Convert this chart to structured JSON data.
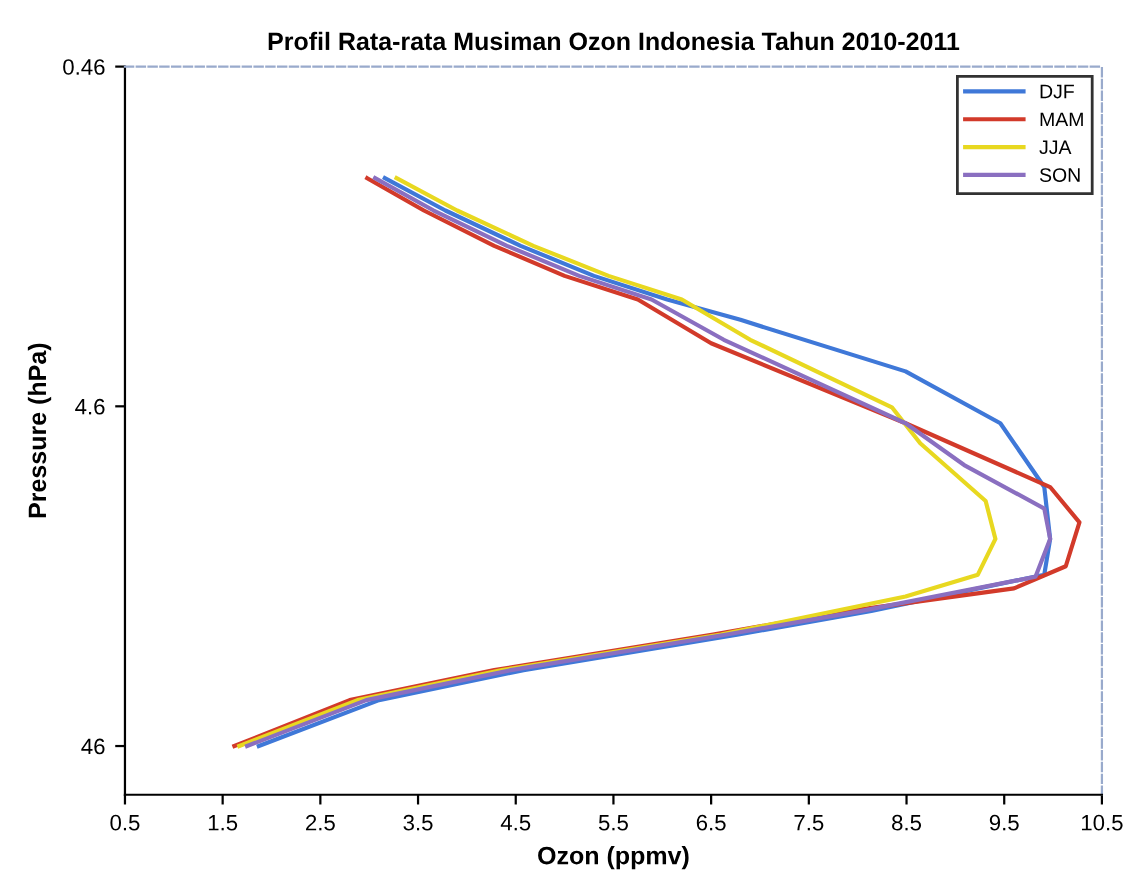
{
  "chart_data": {
    "type": "line",
    "title": "Profil Rata-rata Musiman Ozon Indonesia Tahun 2010-2011",
    "xlabel": "Ozon (ppmv)",
    "ylabel": "Pressure (hPa)",
    "xlim": [
      0.5,
      10.5
    ],
    "xticks": [
      0.5,
      1.5,
      2.5,
      3.5,
      4.5,
      5.5,
      6.5,
      7.5,
      8.5,
      9.5,
      10.5
    ],
    "ylim": [
      64,
      0.46
    ],
    "yticks": [
      0.46,
      4.6,
      46
    ],
    "log": "y",
    "grid": false,
    "legend": "top right",
    "marker": "none",
    "line_style": "solid",
    "series": [
      {
        "name": "DJF",
        "color": "#3f78d8",
        "x": [
          3.16,
          3.78,
          4.55,
          5.3,
          6.05,
          6.8,
          8.49,
          9.46,
          9.91,
          9.97,
          9.91,
          8.14,
          6.78,
          4.58,
          3.1,
          1.87
        ],
        "values": [
          0.98,
          1.22,
          1.55,
          1.9,
          2.23,
          2.56,
          3.63,
          5.16,
          7.95,
          11.3,
          14.4,
          18.4,
          21.6,
          27.5,
          33.7,
          46
        ]
      },
      {
        "name": "MAM",
        "color": "#d23a2a",
        "x": [
          2.98,
          3.56,
          4.28,
          5.0,
          5.75,
          6.5,
          8.49,
          9.97,
          10.27,
          10.13,
          9.6,
          7.92,
          6.52,
          4.28,
          2.8,
          1.62
        ],
        "values": [
          0.98,
          1.22,
          1.55,
          1.9,
          2.23,
          3.0,
          5.16,
          7.95,
          10.1,
          13.6,
          15.8,
          18.4,
          21.6,
          27.5,
          33.7,
          46
        ]
      },
      {
        "name": "JJA",
        "color": "#e8d820",
        "x": [
          3.28,
          3.9,
          4.68,
          5.45,
          6.2,
          6.9,
          8.35,
          8.64,
          9.31,
          9.41,
          9.23,
          8.49,
          6.6,
          4.36,
          2.88,
          1.67
        ],
        "values": [
          0.98,
          1.22,
          1.55,
          1.9,
          2.23,
          2.93,
          4.63,
          5.91,
          8.74,
          11.3,
          14.4,
          16.7,
          21.6,
          27.5,
          33.7,
          46
        ]
      },
      {
        "name": "SON",
        "color": "#8a6fc0",
        "x": [
          3.06,
          3.66,
          4.41,
          5.15,
          5.89,
          6.63,
          8.49,
          9.09,
          9.91,
          9.97,
          9.82,
          8.04,
          6.66,
          4.45,
          2.97,
          1.75
        ],
        "values": [
          0.98,
          1.22,
          1.55,
          1.9,
          2.23,
          2.93,
          5.16,
          6.85,
          9.2,
          11.3,
          14.6,
          18.4,
          21.6,
          27.5,
          33.7,
          46
        ]
      }
    ]
  }
}
